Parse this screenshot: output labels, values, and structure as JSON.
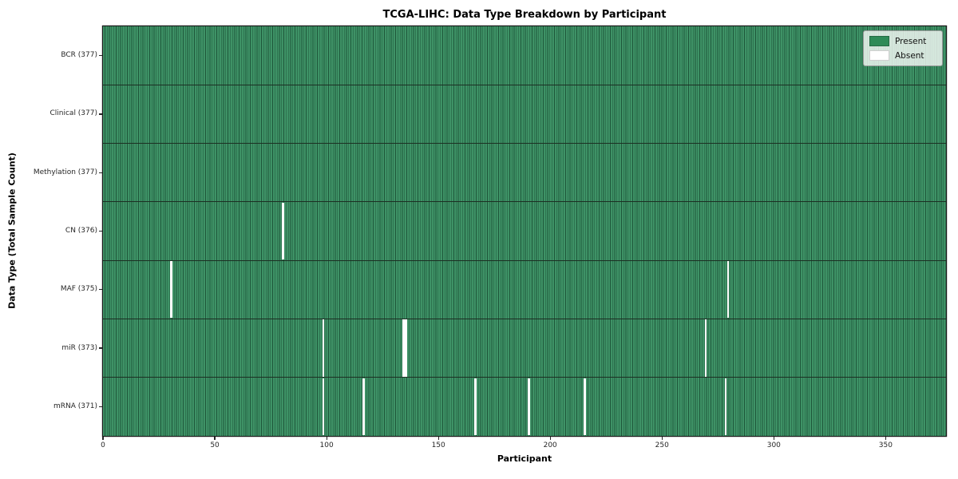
{
  "title": "TCGA-LIHC: Data Type Breakdown by Participant",
  "xlabel": "Participant",
  "ylabel": "Data Type (Total Sample Count)",
  "legend": {
    "present_label": "Present",
    "absent_label": "Absent"
  },
  "colors": {
    "present": "#2e8b57",
    "cell_fill": "#3e9266",
    "cell_edge": "#1e573a",
    "row_divider": "#1c2f23",
    "absent": "#ffffff",
    "spine": "#1a1a1a"
  },
  "chart_data": {
    "type": "heatmap",
    "title": "TCGA-LIHC: Data Type Breakdown by Participant",
    "xlabel": "Participant",
    "ylabel": "Data Type (Total Sample Count)",
    "legend_entries": [
      "Present",
      "Absent"
    ],
    "legend_position": "upper right",
    "n_participants": 377,
    "x_range": [
      0,
      377
    ],
    "x_ticks": [
      0,
      50,
      100,
      150,
      200,
      250,
      300,
      350
    ],
    "rows": [
      {
        "label": "BCR (377)",
        "data_type": "BCR",
        "present_count": 377,
        "absent_count": 0,
        "absent_participants": []
      },
      {
        "label": "Clinical (377)",
        "data_type": "Clinical",
        "present_count": 377,
        "absent_count": 0,
        "absent_participants": []
      },
      {
        "label": "Methylation (377)",
        "data_type": "Methylation",
        "present_count": 377,
        "absent_count": 0,
        "absent_participants": []
      },
      {
        "label": "CN (376)",
        "data_type": "CN",
        "present_count": 376,
        "absent_count": 1,
        "absent_participants": [
          80
        ]
      },
      {
        "label": "MAF (375)",
        "data_type": "MAF",
        "present_count": 375,
        "absent_count": 2,
        "absent_participants": [
          30,
          279
        ]
      },
      {
        "label": "miR (373)",
        "data_type": "miR",
        "present_count": 373,
        "absent_count": 4,
        "absent_participants": [
          98,
          134,
          135,
          269
        ]
      },
      {
        "label": "mRNA (371)",
        "data_type": "mRNA",
        "present_count": 371,
        "absent_count": 6,
        "absent_participants": [
          98,
          116,
          166,
          190,
          215,
          278
        ]
      }
    ]
  }
}
